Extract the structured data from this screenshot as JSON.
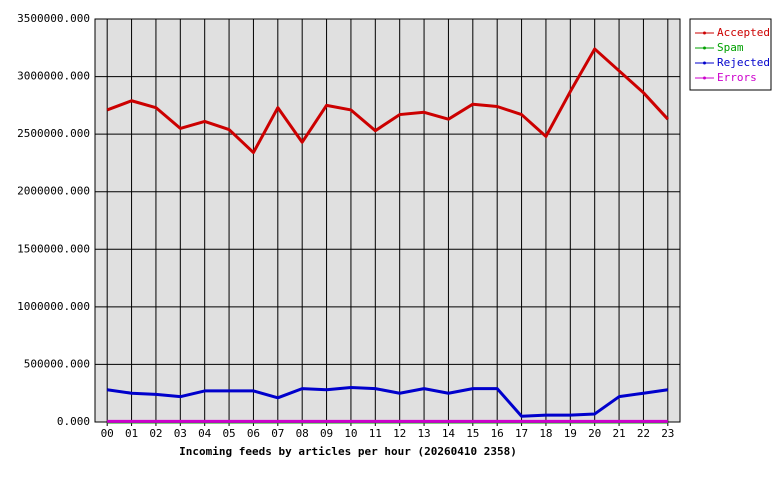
{
  "chart_data": {
    "type": "line",
    "x_label": "Incoming feeds by articles per hour (20260410 2358)",
    "categories": [
      "00",
      "01",
      "02",
      "03",
      "04",
      "05",
      "06",
      "07",
      "08",
      "09",
      "10",
      "11",
      "12",
      "13",
      "14",
      "15",
      "16",
      "17",
      "18",
      "19",
      "20",
      "21",
      "22",
      "23"
    ],
    "series": [
      {
        "name": "Accepted",
        "color": "#cc0000",
        "values": [
          2710000,
          2790000,
          2730000,
          2550000,
          2610000,
          2540000,
          2340000,
          2730000,
          2430000,
          2750000,
          2710000,
          2530000,
          2670000,
          2690000,
          2630000,
          2760000,
          2740000,
          2670000,
          2480000,
          2870000,
          3240000,
          3050000,
          2860000,
          2630000
        ]
      },
      {
        "name": "Spam",
        "color": "#00a000",
        "values": [
          0,
          0,
          0,
          0,
          0,
          0,
          0,
          0,
          0,
          0,
          0,
          0,
          0,
          0,
          0,
          0,
          0,
          0,
          0,
          0,
          0,
          0,
          0,
          0
        ]
      },
      {
        "name": "Rejected",
        "color": "#0000cc",
        "values": [
          280000,
          250000,
          240000,
          220000,
          270000,
          270000,
          270000,
          210000,
          290000,
          280000,
          300000,
          290000,
          250000,
          290000,
          250000,
          290000,
          290000,
          50000,
          60000,
          60000,
          70000,
          220000,
          250000,
          280000
        ]
      },
      {
        "name": "Errors",
        "color": "#cc00cc",
        "values": [
          5000,
          5000,
          5000,
          5000,
          5000,
          5000,
          5000,
          5000,
          5000,
          5000,
          5000,
          5000,
          5000,
          5000,
          5000,
          5000,
          5000,
          5000,
          5000,
          5000,
          5000,
          5000,
          5000,
          5000
        ]
      }
    ],
    "ylim": [
      0,
      3500000
    ],
    "yticks": [
      {
        "value": 0,
        "label": "0.000"
      },
      {
        "value": 500000,
        "label": "500000.000"
      },
      {
        "value": 1000000,
        "label": "1000000.000"
      },
      {
        "value": 1500000,
        "label": "1500000.000"
      },
      {
        "value": 2000000,
        "label": "2000000.000"
      },
      {
        "value": 2500000,
        "label": "2500000.000"
      },
      {
        "value": 3000000,
        "label": "3000000.000"
      },
      {
        "value": 3500000,
        "label": "3500000.000"
      }
    ],
    "grid": true,
    "legend": "right"
  }
}
